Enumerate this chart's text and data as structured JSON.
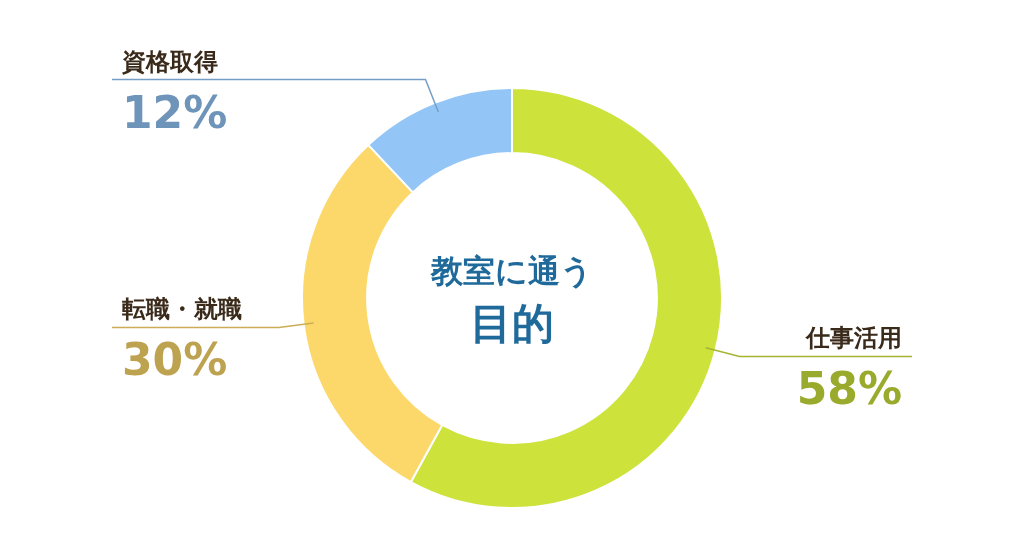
{
  "chart_data": {
    "type": "donut",
    "title": "教室に通う",
    "subtitle": "目的",
    "categories": [
      "仕事活用",
      "転職・就職",
      "資格取得"
    ],
    "values": [
      58,
      30,
      12
    ],
    "colors": [
      "#cde23a",
      "#fcd86a",
      "#93c5f6"
    ],
    "value_labels": [
      "58%",
      "30%",
      "12%"
    ],
    "legend": false
  }
}
